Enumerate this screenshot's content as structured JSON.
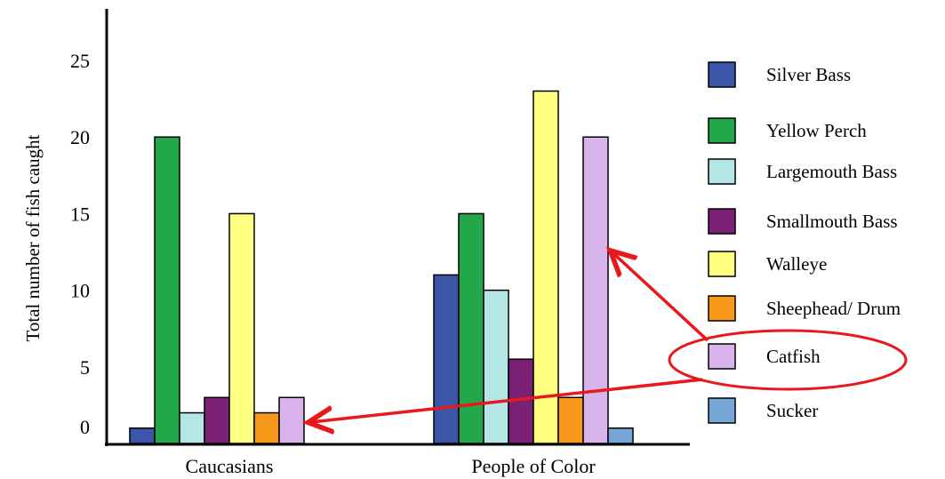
{
  "chart_data": {
    "type": "bar",
    "ylabel": "Total number of fish caught",
    "xlabel": "",
    "title": "",
    "categories": [
      "Caucasians",
      "People of Color"
    ],
    "ylim": [
      0,
      25
    ],
    "yticks": [
      0,
      5,
      10,
      15,
      20,
      25
    ],
    "grid": false,
    "legend_position": "right",
    "series": [
      {
        "name": "Silver Bass",
        "color": "#3b55a8",
        "values": [
          1,
          11
        ]
      },
      {
        "name": "Yellow Perch",
        "color": "#22a84a",
        "values": [
          20,
          15
        ]
      },
      {
        "name": "Largemouth Bass",
        "color": "#b4e6e6",
        "values": [
          2,
          10
        ]
      },
      {
        "name": "Smallmouth Bass",
        "color": "#7a2075",
        "values": [
          3,
          5.5
        ]
      },
      {
        "name": "Walleye",
        "color": "#ffff80",
        "values": [
          15,
          23
        ]
      },
      {
        "name": "Sheephead/ Drum",
        "color": "#f79a1c",
        "values": [
          2,
          3
        ]
      },
      {
        "name": "Catfish",
        "color": "#d9b4ec",
        "values": [
          3,
          20
        ]
      },
      {
        "name": "Sucker",
        "color": "#76a6d6",
        "values": [
          0,
          1
        ]
      }
    ],
    "annotations": [
      {
        "type": "ellipse",
        "color": "#e8181c",
        "target": "legend: Catfish"
      },
      {
        "type": "arrow",
        "color": "#e8181c",
        "target": "People of Color Catfish bar"
      },
      {
        "type": "arrow",
        "color": "#e8181c",
        "target": "Caucasians Catfish bar"
      }
    ]
  }
}
